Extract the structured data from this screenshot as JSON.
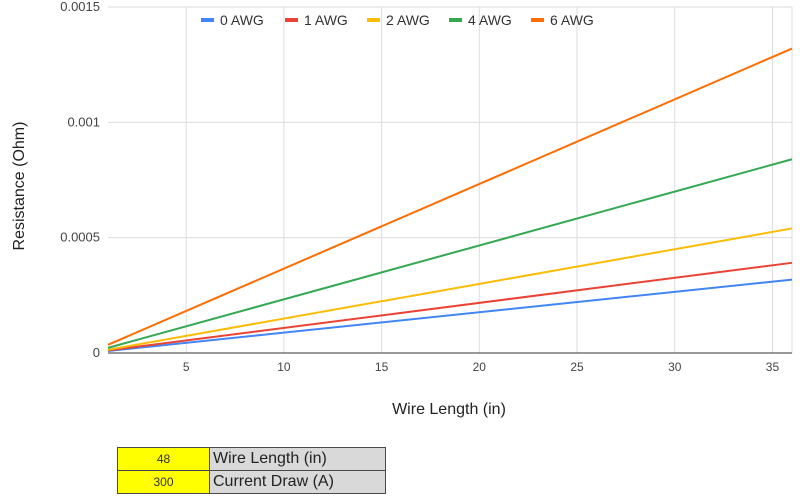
{
  "chart_data": {
    "type": "line",
    "xlabel": "Wire Length (in)",
    "ylabel": "Resistance (Ohm)",
    "xlim": [
      1,
      36
    ],
    "ylim": [
      0,
      0.0015
    ],
    "x_ticks": [
      "5",
      "10",
      "15",
      "20",
      "25",
      "30",
      "35"
    ],
    "y_ticks": [
      "0",
      "0.0005",
      "0.001",
      "0.0015"
    ],
    "grid": true,
    "legend_position": "top",
    "x": [
      1,
      36
    ],
    "series": [
      {
        "name": "0 AWG",
        "color": "#4285f4",
        "values": [
          8.8e-06,
          0.000318
        ]
      },
      {
        "name": "1 AWG",
        "color": "#ea4335",
        "values": [
          1.11e-05,
          0.000391
        ]
      },
      {
        "name": "2 AWG",
        "color": "#fbbc04",
        "values": [
          1.4e-05,
          0.00054
        ]
      },
      {
        "name": "4 AWG",
        "color": "#34a853",
        "values": [
          2.23e-05,
          0.00084
        ]
      },
      {
        "name": "6 AWG",
        "color": "#ff6d01",
        "values": [
          3.55e-05,
          0.00132
        ]
      }
    ]
  },
  "inputs": [
    {
      "value": "48",
      "label": "Wire Length (in)"
    },
    {
      "value": "300",
      "label": "Current Draw (A)"
    }
  ]
}
